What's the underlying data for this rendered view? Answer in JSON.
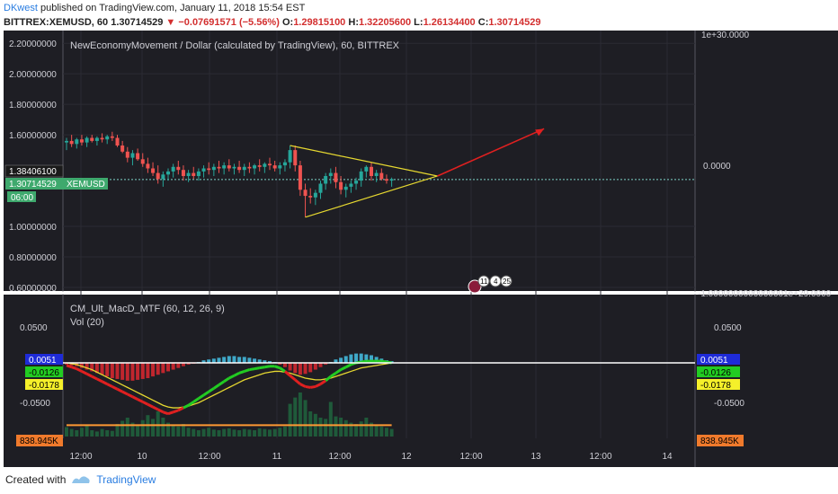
{
  "header": {
    "author": "DKwest",
    "published_text": "published on TradingView.com, January 11, 2018 15:54 EST",
    "symbol_line": "BITTREX:XEMUSD, 60",
    "last_price": "1.30714529",
    "change": "−0.07691571 (−5.56%)",
    "o_label": "O:",
    "o_value": "1.29815100",
    "h_label": "H:",
    "h_value": "1.32205600",
    "l_label": "L:",
    "l_value": "1.26134400",
    "c_label": "C:",
    "c_value": "1.30714529"
  },
  "footer": {
    "created_with": "Created with",
    "brand": "TradingView"
  },
  "colors": {
    "background": "#1e1e24",
    "up": "#26a69a",
    "down": "#ef5350",
    "triangle": "#e6d830",
    "arrow": "#e02020",
    "macd_line": "#22cc22",
    "macd_line_down": "#e02020",
    "signal": "#e6d830",
    "volume_avg": "#ff9933"
  },
  "chart_data": [
    {
      "type": "candlestick",
      "title": "NewEconomyMovement / Dollar (calculated by TradingView), 60, BITTREX",
      "x_ticks": [
        "12:00",
        "10",
        "12:00",
        "11",
        "12:00",
        "12",
        "12:00",
        "13",
        "12:00",
        "14"
      ],
      "y_ticks": [
        "2.20000000",
        "2.00000000",
        "1.80000000",
        "1.60000000",
        "1.38406100",
        "1.30714529",
        "1.00000000",
        "0.80000000",
        "0.60000000"
      ],
      "ylim": [
        0.6,
        2.26
      ],
      "price_label": "1.30714529",
      "symbol_label": "XEMUSD",
      "countdown_label": "06:00",
      "prev_close_label": "1.38406100",
      "right_axis_ticks": [
        "1e+30.0000",
        "0.0000",
        "-1.0000000000000001e+29.0000"
      ],
      "event_badges": [
        "11",
        "4",
        "25"
      ],
      "candles": [
        {
          "t": 0,
          "o": 1.55,
          "h": 1.58,
          "l": 1.5,
          "c": 1.56
        },
        {
          "t": 1,
          "o": 1.56,
          "h": 1.6,
          "l": 1.52,
          "c": 1.54
        },
        {
          "t": 2,
          "o": 1.54,
          "h": 1.58,
          "l": 1.51,
          "c": 1.57
        },
        {
          "t": 3,
          "o": 1.57,
          "h": 1.6,
          "l": 1.53,
          "c": 1.55
        },
        {
          "t": 4,
          "o": 1.55,
          "h": 1.59,
          "l": 1.52,
          "c": 1.58
        },
        {
          "t": 5,
          "o": 1.58,
          "h": 1.6,
          "l": 1.55,
          "c": 1.56
        },
        {
          "t": 6,
          "o": 1.56,
          "h": 1.59,
          "l": 1.53,
          "c": 1.58
        },
        {
          "t": 7,
          "o": 1.58,
          "h": 1.61,
          "l": 1.55,
          "c": 1.57
        },
        {
          "t": 8,
          "o": 1.57,
          "h": 1.6,
          "l": 1.54,
          "c": 1.59
        },
        {
          "t": 9,
          "o": 1.59,
          "h": 1.62,
          "l": 1.56,
          "c": 1.58
        },
        {
          "t": 10,
          "o": 1.58,
          "h": 1.6,
          "l": 1.52,
          "c": 1.53
        },
        {
          "t": 11,
          "o": 1.53,
          "h": 1.56,
          "l": 1.48,
          "c": 1.49
        },
        {
          "t": 12,
          "o": 1.49,
          "h": 1.52,
          "l": 1.42,
          "c": 1.45
        },
        {
          "t": 13,
          "o": 1.45,
          "h": 1.5,
          "l": 1.4,
          "c": 1.48
        },
        {
          "t": 14,
          "o": 1.48,
          "h": 1.51,
          "l": 1.43,
          "c": 1.44
        },
        {
          "t": 15,
          "o": 1.44,
          "h": 1.48,
          "l": 1.39,
          "c": 1.41
        },
        {
          "t": 16,
          "o": 1.41,
          "h": 1.45,
          "l": 1.35,
          "c": 1.38
        },
        {
          "t": 17,
          "o": 1.38,
          "h": 1.42,
          "l": 1.33,
          "c": 1.35
        },
        {
          "t": 18,
          "o": 1.35,
          "h": 1.4,
          "l": 1.28,
          "c": 1.31
        },
        {
          "t": 19,
          "o": 1.31,
          "h": 1.36,
          "l": 1.26,
          "c": 1.34
        },
        {
          "t": 20,
          "o": 1.34,
          "h": 1.38,
          "l": 1.3,
          "c": 1.36
        },
        {
          "t": 21,
          "o": 1.36,
          "h": 1.41,
          "l": 1.32,
          "c": 1.39
        },
        {
          "t": 22,
          "o": 1.39,
          "h": 1.43,
          "l": 1.34,
          "c": 1.37
        },
        {
          "t": 23,
          "o": 1.37,
          "h": 1.4,
          "l": 1.3,
          "c": 1.33
        },
        {
          "t": 24,
          "o": 1.33,
          "h": 1.37,
          "l": 1.29,
          "c": 1.35
        },
        {
          "t": 25,
          "o": 1.35,
          "h": 1.39,
          "l": 1.31,
          "c": 1.33
        },
        {
          "t": 26,
          "o": 1.33,
          "h": 1.38,
          "l": 1.3,
          "c": 1.36
        },
        {
          "t": 27,
          "o": 1.36,
          "h": 1.4,
          "l": 1.32,
          "c": 1.38
        },
        {
          "t": 28,
          "o": 1.38,
          "h": 1.42,
          "l": 1.34,
          "c": 1.37
        },
        {
          "t": 29,
          "o": 1.37,
          "h": 1.41,
          "l": 1.33,
          "c": 1.39
        },
        {
          "t": 30,
          "o": 1.39,
          "h": 1.43,
          "l": 1.35,
          "c": 1.38
        },
        {
          "t": 31,
          "o": 1.38,
          "h": 1.42,
          "l": 1.34,
          "c": 1.4
        },
        {
          "t": 32,
          "o": 1.4,
          "h": 1.44,
          "l": 1.36,
          "c": 1.38
        },
        {
          "t": 33,
          "o": 1.38,
          "h": 1.41,
          "l": 1.34,
          "c": 1.39
        },
        {
          "t": 34,
          "o": 1.39,
          "h": 1.43,
          "l": 1.35,
          "c": 1.37
        },
        {
          "t": 35,
          "o": 1.37,
          "h": 1.41,
          "l": 1.33,
          "c": 1.39
        },
        {
          "t": 36,
          "o": 1.39,
          "h": 1.42,
          "l": 1.35,
          "c": 1.38
        },
        {
          "t": 37,
          "o": 1.38,
          "h": 1.41,
          "l": 1.34,
          "c": 1.4
        },
        {
          "t": 38,
          "o": 1.4,
          "h": 1.44,
          "l": 1.36,
          "c": 1.39
        },
        {
          "t": 39,
          "o": 1.39,
          "h": 1.42,
          "l": 1.35,
          "c": 1.41
        },
        {
          "t": 40,
          "o": 1.41,
          "h": 1.45,
          "l": 1.37,
          "c": 1.4
        },
        {
          "t": 41,
          "o": 1.4,
          "h": 1.43,
          "l": 1.36,
          "c": 1.38
        },
        {
          "t": 42,
          "o": 1.38,
          "h": 1.42,
          "l": 1.34,
          "c": 1.4
        },
        {
          "t": 43,
          "o": 1.4,
          "h": 1.44,
          "l": 1.36,
          "c": 1.42
        },
        {
          "t": 44,
          "o": 1.42,
          "h": 1.53,
          "l": 1.38,
          "c": 1.5
        },
        {
          "t": 45,
          "o": 1.5,
          "h": 1.53,
          "l": 1.36,
          "c": 1.4
        },
        {
          "t": 46,
          "o": 1.4,
          "h": 1.43,
          "l": 1.2,
          "c": 1.24
        },
        {
          "t": 47,
          "o": 1.24,
          "h": 1.28,
          "l": 1.06,
          "c": 1.2
        },
        {
          "t": 48,
          "o": 1.2,
          "h": 1.25,
          "l": 1.15,
          "c": 1.19
        },
        {
          "t": 49,
          "o": 1.19,
          "h": 1.24,
          "l": 1.14,
          "c": 1.22
        },
        {
          "t": 50,
          "o": 1.22,
          "h": 1.3,
          "l": 1.18,
          "c": 1.28
        },
        {
          "t": 51,
          "o": 1.28,
          "h": 1.35,
          "l": 1.24,
          "c": 1.33
        },
        {
          "t": 52,
          "o": 1.33,
          "h": 1.38,
          "l": 1.28,
          "c": 1.35
        },
        {
          "t": 53,
          "o": 1.35,
          "h": 1.39,
          "l": 1.25,
          "c": 1.29
        },
        {
          "t": 54,
          "o": 1.29,
          "h": 1.33,
          "l": 1.21,
          "c": 1.24
        },
        {
          "t": 55,
          "o": 1.24,
          "h": 1.28,
          "l": 1.19,
          "c": 1.26
        },
        {
          "t": 56,
          "o": 1.26,
          "h": 1.3,
          "l": 1.22,
          "c": 1.28
        },
        {
          "t": 57,
          "o": 1.28,
          "h": 1.32,
          "l": 1.24,
          "c": 1.3
        },
        {
          "t": 58,
          "o": 1.3,
          "h": 1.38,
          "l": 1.26,
          "c": 1.36
        },
        {
          "t": 59,
          "o": 1.36,
          "h": 1.4,
          "l": 1.32,
          "c": 1.39
        },
        {
          "t": 60,
          "o": 1.39,
          "h": 1.42,
          "l": 1.3,
          "c": 1.33
        },
        {
          "t": 61,
          "o": 1.33,
          "h": 1.37,
          "l": 1.29,
          "c": 1.35
        },
        {
          "t": 62,
          "o": 1.35,
          "h": 1.38,
          "l": 1.3,
          "c": 1.31
        },
        {
          "t": 63,
          "o": 1.31,
          "h": 1.34,
          "l": 1.28,
          "c": 1.3
        },
        {
          "t": 64,
          "o": 1.3,
          "h": 1.32,
          "l": 1.26,
          "c": 1.31
        }
      ],
      "drawings": {
        "triangle_upper": [
          [
            44,
            1.53
          ],
          [
            73,
            1.33
          ]
        ],
        "triangle_lower": [
          [
            47,
            1.06
          ],
          [
            73,
            1.33
          ]
        ],
        "arrow": [
          [
            73,
            1.33
          ],
          [
            94,
            1.64
          ]
        ]
      }
    },
    {
      "type": "macd",
      "title": "CM_Ult_MacD_MTF (60, 12, 26, 9)",
      "volume_title": "Vol (20)",
      "y_ticks": [
        "0.0500",
        "-0.0500"
      ],
      "ylim": [
        -0.072,
        0.072
      ],
      "labels": {
        "histogram": "0.0051",
        "macd": "-0.0126",
        "signal": "-0.0178",
        "volume": "838.945K"
      },
      "x_ticks": [
        "12:00",
        "10",
        "12:00",
        "11",
        "12:00",
        "12",
        "12:00",
        "13",
        "12:00",
        "14"
      ],
      "histogram": [
        -0.002,
        -0.003,
        -0.004,
        -0.006,
        -0.008,
        -0.01,
        -0.012,
        -0.014,
        -0.016,
        -0.018,
        -0.019,
        -0.02,
        -0.021,
        -0.021,
        -0.02,
        -0.019,
        -0.018,
        -0.016,
        -0.014,
        -0.012,
        -0.01,
        -0.008,
        -0.006,
        -0.004,
        -0.002,
        -0.001,
        0.001,
        0.003,
        0.004,
        0.005,
        0.006,
        0.007,
        0.008,
        0.008,
        0.007,
        0.007,
        0.006,
        0.005,
        0.004,
        0.003,
        0.002,
        0.001,
        -0.002,
        -0.005,
        -0.009,
        -0.012,
        -0.014,
        -0.013,
        -0.011,
        -0.008,
        -0.005,
        -0.002,
        0.001,
        0.004,
        0.006,
        0.008,
        0.01,
        0.011,
        0.011,
        0.01,
        0.009,
        0.007,
        0.005,
        0.003,
        0.002
      ],
      "macd": [
        -0.003,
        -0.005,
        -0.007,
        -0.01,
        -0.013,
        -0.016,
        -0.019,
        -0.022,
        -0.025,
        -0.028,
        -0.031,
        -0.034,
        -0.037,
        -0.04,
        -0.043,
        -0.046,
        -0.049,
        -0.052,
        -0.055,
        -0.058,
        -0.06,
        -0.058,
        -0.056,
        -0.053,
        -0.05,
        -0.046,
        -0.042,
        -0.038,
        -0.034,
        -0.03,
        -0.026,
        -0.022,
        -0.018,
        -0.015,
        -0.012,
        -0.01,
        -0.008,
        -0.007,
        -0.006,
        -0.005,
        -0.004,
        -0.004,
        -0.006,
        -0.01,
        -0.015,
        -0.02,
        -0.025,
        -0.028,
        -0.029,
        -0.028,
        -0.025,
        -0.021,
        -0.016,
        -0.012,
        -0.008,
        -0.005,
        -0.002,
        0.0,
        0.001,
        0.002,
        0.002,
        0.002,
        0.002,
        0.001,
        0.0
      ],
      "signal": [
        0.0,
        -0.001,
        -0.002,
        -0.004,
        -0.006,
        -0.008,
        -0.011,
        -0.014,
        -0.017,
        -0.02,
        -0.023,
        -0.026,
        -0.029,
        -0.032,
        -0.035,
        -0.038,
        -0.041,
        -0.044,
        -0.047,
        -0.05,
        -0.052,
        -0.053,
        -0.053,
        -0.052,
        -0.051,
        -0.049,
        -0.047,
        -0.044,
        -0.041,
        -0.038,
        -0.035,
        -0.032,
        -0.029,
        -0.026,
        -0.023,
        -0.02,
        -0.018,
        -0.016,
        -0.014,
        -0.012,
        -0.011,
        -0.01,
        -0.01,
        -0.011,
        -0.012,
        -0.014,
        -0.016,
        -0.018,
        -0.019,
        -0.02,
        -0.02,
        -0.019,
        -0.018,
        -0.016,
        -0.014,
        -0.012,
        -0.01,
        -0.008,
        -0.006,
        -0.005,
        -0.004,
        -0.003,
        -0.002,
        -0.001,
        0.0
      ],
      "volume": [
        0.15,
        0.12,
        0.1,
        0.14,
        0.18,
        0.1,
        0.08,
        0.12,
        0.1,
        0.09,
        0.2,
        0.25,
        0.3,
        0.22,
        0.18,
        0.26,
        0.34,
        0.28,
        0.4,
        0.3,
        0.22,
        0.18,
        0.16,
        0.2,
        0.14,
        0.12,
        0.1,
        0.12,
        0.14,
        0.11,
        0.1,
        0.12,
        0.13,
        0.11,
        0.1,
        0.12,
        0.11,
        0.1,
        0.13,
        0.12,
        0.11,
        0.12,
        0.14,
        0.16,
        0.52,
        0.62,
        0.7,
        0.58,
        0.4,
        0.36,
        0.3,
        0.28,
        0.55,
        0.32,
        0.3,
        0.26,
        0.22,
        0.2,
        0.24,
        0.3,
        0.22,
        0.18,
        0.16,
        0.14,
        0.12
      ],
      "volume_avg": 0.18
    }
  ]
}
